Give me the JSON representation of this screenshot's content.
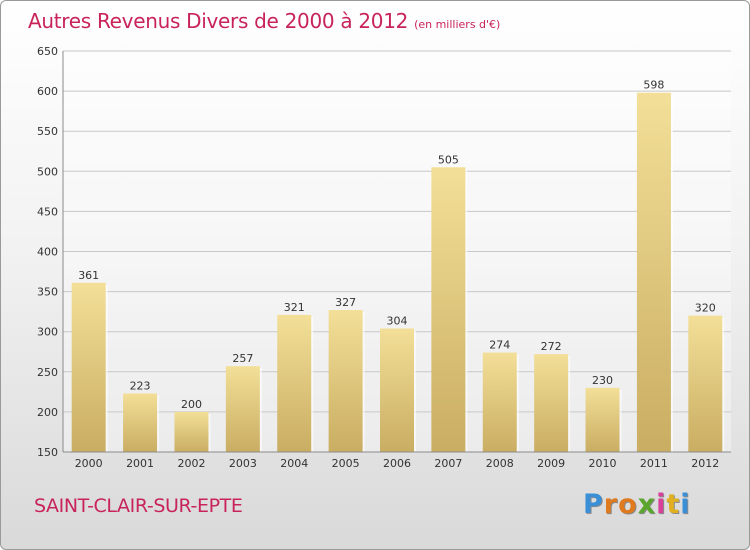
{
  "chart_data": {
    "type": "bar",
    "title": "Autres Revenus Divers de 2000 à 2012",
    "subtitle": "(en milliers d'€)",
    "categories": [
      "2000",
      "2001",
      "2002",
      "2003",
      "2004",
      "2005",
      "2006",
      "2007",
      "2008",
      "2009",
      "2010",
      "2011",
      "2012"
    ],
    "values": [
      361,
      223,
      200,
      257,
      321,
      327,
      304,
      505,
      274,
      272,
      230,
      598,
      320
    ],
    "ylim": [
      150,
      650
    ],
    "yticks": [
      150,
      200,
      250,
      300,
      350,
      400,
      450,
      500,
      550,
      600,
      650
    ],
    "grid": true,
    "legend": "none",
    "bar_color_top": "#f3df98",
    "bar_color_bottom": "#c9ad62"
  },
  "footer": {
    "city": "SAINT-CLAIR-SUR-EPTE",
    "logo_letters": [
      "P",
      "r",
      "o",
      "x",
      "i",
      "t",
      "i"
    ],
    "logo_colors": [
      "#3b8fd6",
      "#e07a1e",
      "#e07a1e",
      "#5aa62c",
      "#d8409a",
      "#e0b020",
      "#3b8fd6"
    ]
  },
  "colors": {
    "accent": "#c8245a",
    "grid": "#c8c8c8"
  }
}
